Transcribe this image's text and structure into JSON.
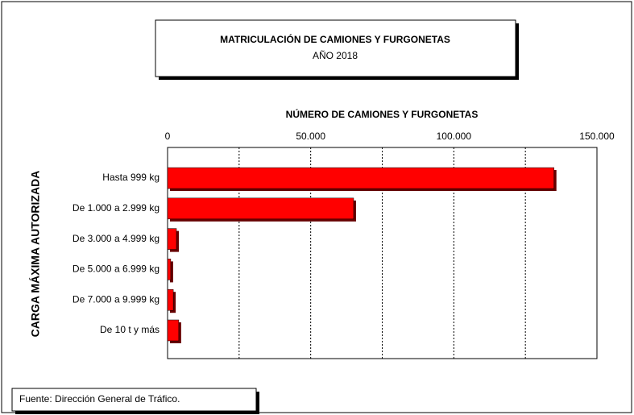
{
  "chart_data": {
    "type": "barh",
    "title": "MATRICULACIÓN DE CAMIONES Y FURGONETAS",
    "subtitle": "AÑO 2018",
    "x_label": "NÚMERO DE CAMIONES Y FURGONETAS",
    "y_label": "CARGA MÁXIMA AUTORIZADA",
    "source": "Fuente: Dirección General de Tráfico.",
    "categories": [
      "Hasta 999 kg",
      "De 1.000 a 2.999 kg",
      "De 3.000 a 4.999 kg",
      "De 5.000 a 6.999 kg",
      "De 7.000 a 9.999 kg",
      "De 10 t y más"
    ],
    "values": [
      135000,
      65000,
      3100,
      1100,
      2000,
      3900
    ],
    "color": "#ff0000",
    "xlim": [
      0,
      150000
    ],
    "xticks": [
      0,
      {
        "value": 50000,
        "label": "50.000"
      },
      {
        "value": 100000,
        "label": "100.000"
      },
      {
        "value": 150000,
        "label": "150.000"
      }
    ],
    "minor_xticks": [
      25000,
      75000,
      125000
    ],
    "grid": true
  }
}
